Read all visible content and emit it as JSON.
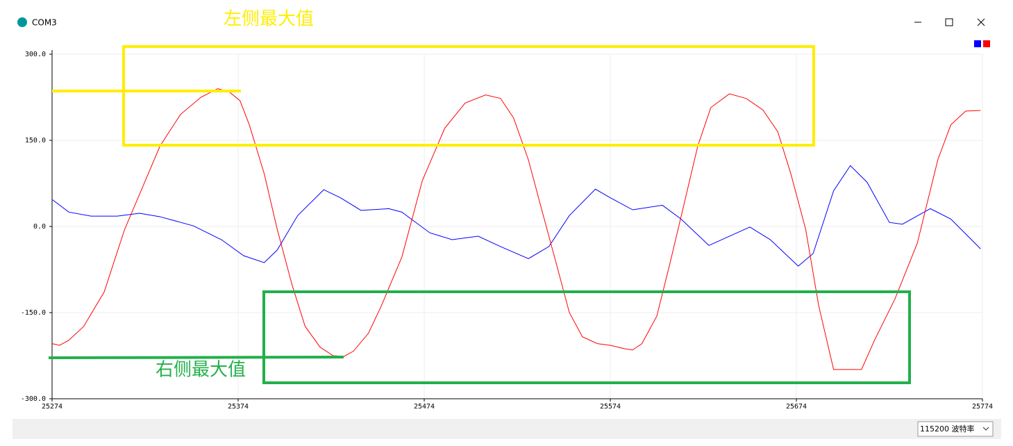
{
  "window": {
    "title": "COM3"
  },
  "chart_data": {
    "type": "line",
    "xlim": [
      25274,
      25774
    ],
    "xticks": [
      25274,
      25374,
      25474,
      25574,
      25674,
      25774
    ],
    "ylim": [
      -300,
      300
    ],
    "yticks": [
      {
        "value": 300,
        "label": "300.0"
      },
      {
        "value": 150,
        "label": "150.0"
      },
      {
        "value": 0,
        "label": "0.0"
      },
      {
        "value": -150,
        "label": "-150.0"
      },
      {
        "value": -300,
        "label": "-300.0"
      }
    ],
    "grid": true,
    "legend": "top-right",
    "series": [
      {
        "color": "#0000ff",
        "x": [
          25274,
          25283,
          25295,
          25309,
          25321,
          25332,
          25350,
          25365,
          25377,
          25388,
          25395,
          25406,
          25420,
          25429,
          25440,
          25455,
          25462,
          25477,
          25489,
          25503,
          25515,
          25530,
          25541,
          25552,
          25566,
          25574,
          25586,
          25602,
          25612,
          25627,
          25638,
          25649,
          25660,
          25675,
          25683,
          25694,
          25703,
          25712,
          25724,
          25731,
          25746,
          25757,
          25773
        ],
        "values": [
          47,
          25,
          18,
          18,
          23,
          17,
          1,
          -23,
          -51,
          -63,
          -41,
          19,
          64,
          50,
          28,
          31,
          25,
          -11,
          -23,
          -17,
          -35,
          -56,
          -35,
          19,
          65,
          50,
          29,
          37,
          13,
          -33,
          -17,
          -1,
          -23,
          -69,
          -47,
          62,
          106,
          77,
          7,
          4,
          31,
          13,
          -39
        ]
      },
      {
        "color": "#ff0000",
        "x": [
          25274,
          25278,
          25283,
          25291,
          25302,
          25313,
          25321,
          25332,
          25343,
          25354,
          25363,
          25369,
          25375,
          25380,
          25388,
          25395,
          25403,
          25410,
          25418,
          25425,
          25431,
          25436,
          25444,
          25451,
          25462,
          25473,
          25485,
          25496,
          25507,
          25515,
          25522,
          25530,
          25537,
          25545,
          25552,
          25559,
          25567,
          25574,
          25582,
          25586,
          25591,
          25599,
          25606,
          25614,
          25621,
          25628,
          25638,
          25647,
          25656,
          25664,
          25671,
          25679,
          25686,
          25694,
          25709,
          25716,
          25727,
          25739,
          25750,
          25757,
          25765,
          25773
        ],
        "values": [
          -204,
          -207,
          -198,
          -174,
          -114,
          -5,
          56,
          140,
          195,
          225,
          240,
          235,
          219,
          177,
          92,
          -5,
          -102,
          -174,
          -210,
          -225,
          -226,
          -217,
          -186,
          -138,
          -53,
          80,
          171,
          215,
          229,
          223,
          189,
          116,
          31,
          -65,
          -150,
          -192,
          -204,
          -207,
          -213,
          -215,
          -204,
          -156,
          -65,
          44,
          140,
          207,
          231,
          223,
          203,
          165,
          92,
          -5,
          -138,
          -249,
          -249,
          -198,
          -126,
          -29,
          116,
          177,
          201,
          202
        ]
      }
    ]
  },
  "annotations": {
    "left": "左侧最大值",
    "right": "右侧最大值"
  },
  "footer": {
    "baud": "115200 波特率"
  }
}
